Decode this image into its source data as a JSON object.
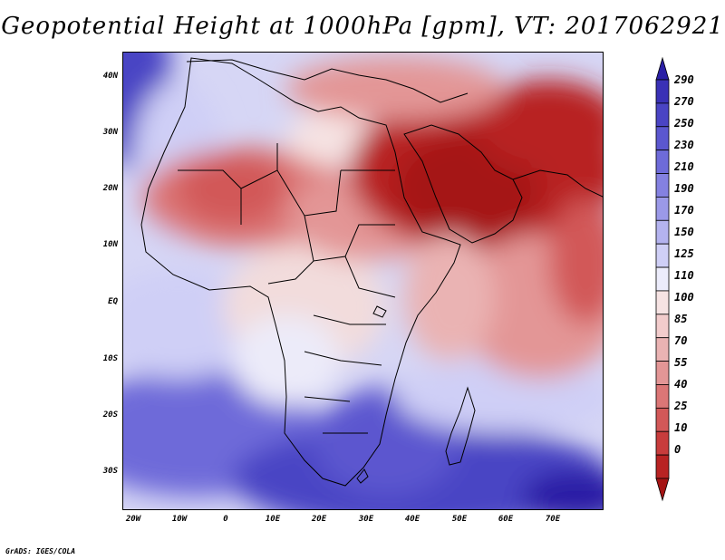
{
  "title": "Geopotential Height at 1000hPa [gpm], VT: 2017062921",
  "credit": "GrADS: IGES/COLA",
  "lat_ticks": [
    "40N",
    "30N",
    "20N",
    "10N",
    "EQ",
    "10S",
    "20S",
    "30S"
  ],
  "lon_ticks": [
    "20W",
    "10W",
    "0",
    "10E",
    "20E",
    "30E",
    "40E",
    "50E",
    "60E",
    "70E"
  ],
  "colorbar_levels": [
    "290",
    "270",
    "250",
    "230",
    "210",
    "190",
    "170",
    "150",
    "125",
    "110",
    "100",
    "85",
    "70",
    "55",
    "40",
    "25",
    "10",
    "0"
  ],
  "colorbar_colors": [
    "#2a1fa5",
    "#3a31b6",
    "#4a44c4",
    "#5b57cf",
    "#6e6bd9",
    "#8481e1",
    "#9b99e8",
    "#b4b3ef",
    "#cfcff6",
    "#ececfb",
    "#f6e3e3",
    "#f2cccc",
    "#eab3b3",
    "#e39696",
    "#db7676",
    "#d25858",
    "#c83c3c",
    "#b82323",
    "#a51414"
  ]
}
